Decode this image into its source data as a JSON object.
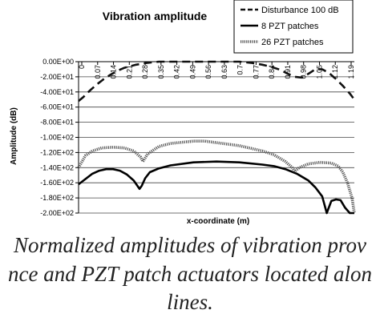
{
  "chart_data": {
    "type": "line",
    "title": "Vibration amplitude",
    "xlabel": "x-coordinate (m)",
    "ylabel": "Amplitude (dB)",
    "ylim": [
      -200,
      0
    ],
    "y_tick_labels": [
      "0.00E+00",
      "-2.00E+01",
      "-4.00E+01",
      "-6.00E+01",
      "-8.00E+01",
      "-1.00E+02",
      "-1.20E+02",
      "-1.40E+02",
      "-1.60E+02",
      "-1.80E+02",
      "-2.00E+02"
    ],
    "x_tick_labels": [
      "0",
      "0.07",
      "0.14",
      "0.21",
      "0.28",
      "0.35",
      "0.42",
      "0.49",
      "0.56",
      "0.63",
      "0.7",
      "0.77",
      "0.84",
      "0.91",
      "0.98",
      "1.05",
      "1.12",
      "1.19"
    ],
    "xlim": [
      0,
      1.2
    ],
    "grid": "horizontal",
    "legend_position": "top-right",
    "series": [
      {
        "name": "Disturbance 100 dB",
        "style": "dashed",
        "color": "#111111",
        "x": [
          0,
          0.02,
          0.05,
          0.08,
          0.11,
          0.14,
          0.17,
          0.2,
          0.25,
          0.3,
          0.35,
          0.4,
          0.45,
          0.5,
          0.55,
          0.6,
          0.65,
          0.7,
          0.75,
          0.8,
          0.84,
          0.88,
          0.91,
          0.94,
          0.97,
          1.0,
          1.03,
          1.06,
          1.09,
          1.12,
          1.15,
          1.18,
          1.2
        ],
        "y": [
          -52,
          -47,
          -38,
          -30,
          -23,
          -17,
          -12,
          -8,
          -4,
          -1.5,
          0,
          0,
          0,
          0,
          0,
          0,
          0,
          0,
          -1.5,
          -4,
          -7,
          -11,
          -16,
          -20,
          -21,
          -16,
          -10,
          -10,
          -15,
          -23,
          -32,
          -42,
          -50
        ]
      },
      {
        "name": "8 PZT patches",
        "style": "solid",
        "color": "#000000",
        "x": [
          0,
          0.03,
          0.06,
          0.09,
          0.12,
          0.15,
          0.18,
          0.21,
          0.24,
          0.265,
          0.275,
          0.29,
          0.31,
          0.35,
          0.4,
          0.5,
          0.6,
          0.7,
          0.8,
          0.85,
          0.9,
          0.95,
          1.0,
          1.03,
          1.06,
          1.08,
          1.1,
          1.12,
          1.14,
          1.16,
          1.18,
          1.2
        ],
        "y": [
          -162,
          -155,
          -148,
          -144,
          -142,
          -142,
          -144,
          -149,
          -157,
          -168,
          -164,
          -154,
          -146,
          -141,
          -137,
          -133,
          -132,
          -133,
          -136,
          -138,
          -142,
          -148,
          -157,
          -166,
          -178,
          -200,
          -184,
          -182,
          -183,
          -193,
          -200,
          -200
        ]
      },
      {
        "name": "26 PZT patches",
        "style": "dotted",
        "color": "#555555",
        "x": [
          0,
          0.03,
          0.06,
          0.1,
          0.15,
          0.2,
          0.24,
          0.27,
          0.28,
          0.3,
          0.35,
          0.4,
          0.5,
          0.55,
          0.6,
          0.7,
          0.8,
          0.85,
          0.9,
          0.93,
          0.94,
          0.96,
          1.0,
          1.05,
          1.1,
          1.13,
          1.15,
          1.17,
          1.19,
          1.2
        ],
        "y": [
          -140,
          -124,
          -118,
          -114,
          -113,
          -114,
          -118,
          -126,
          -132,
          -122,
          -112,
          -108,
          -105,
          -105,
          -107,
          -111,
          -118,
          -123,
          -132,
          -140,
          -145,
          -140,
          -135,
          -133,
          -134,
          -138,
          -146,
          -160,
          -180,
          -200
        ]
      }
    ]
  },
  "caption": {
    "line1": "Normalized  amplitudes of vibration prov",
    "line2": "nce and PZT patch actuators located alon",
    "line3": "lines."
  }
}
